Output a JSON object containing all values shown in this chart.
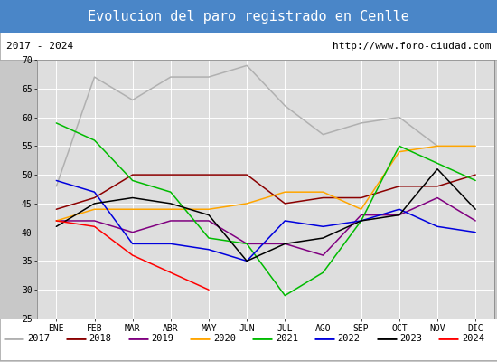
{
  "title": "Evolucion del paro registrado en Cenlle",
  "subtitle_left": "2017 - 2024",
  "subtitle_right": "http://www.foro-ciudad.com",
  "months": [
    "ENE",
    "FEB",
    "MAR",
    "ABR",
    "MAY",
    "JUN",
    "JUL",
    "AGO",
    "SEP",
    "OCT",
    "NOV",
    "DIC"
  ],
  "ylim": [
    25,
    70
  ],
  "yticks": [
    25,
    30,
    35,
    40,
    45,
    50,
    55,
    60,
    65,
    70
  ],
  "series": {
    "2017": {
      "color": "#b0b0b0",
      "data": [
        48,
        67,
        63,
        67,
        67,
        69,
        62,
        57,
        59,
        60,
        55,
        null
      ]
    },
    "2018": {
      "color": "#8b0000",
      "data": [
        44,
        46,
        50,
        50,
        50,
        50,
        45,
        46,
        46,
        48,
        48,
        50
      ]
    },
    "2019": {
      "color": "#800080",
      "data": [
        42,
        42,
        40,
        42,
        42,
        38,
        38,
        36,
        43,
        43,
        46,
        42
      ]
    },
    "2020": {
      "color": "#ffa500",
      "data": [
        42,
        44,
        44,
        44,
        44,
        45,
        47,
        47,
        44,
        54,
        55,
        55
      ]
    },
    "2021": {
      "color": "#00bb00",
      "data": [
        59,
        56,
        49,
        47,
        39,
        38,
        29,
        33,
        42,
        55,
        52,
        49
      ]
    },
    "2022": {
      "color": "#0000dd",
      "data": [
        49,
        47,
        38,
        38,
        37,
        35,
        42,
        41,
        42,
        44,
        41,
        40
      ]
    },
    "2023": {
      "color": "#000000",
      "data": [
        41,
        45,
        46,
        45,
        43,
        35,
        38,
        39,
        42,
        43,
        51,
        44
      ]
    },
    "2024": {
      "color": "#ff0000",
      "data": [
        42,
        41,
        36,
        33,
        30,
        null,
        null,
        null,
        null,
        null,
        null,
        null
      ]
    }
  },
  "title_bg_color": "#4a86c8",
  "title_color": "white",
  "title_fontsize": 11,
  "header_bg_color": "#ffffff",
  "header_fontsize": 8,
  "plot_bg_color": "#dedede",
  "outer_bg_color": "#c8c8c8",
  "legend_bg_color": "#ffffff",
  "legend_fontsize": 7.5,
  "tick_fontsize": 7,
  "grid_color": "#ffffff",
  "border_color": "#888888"
}
